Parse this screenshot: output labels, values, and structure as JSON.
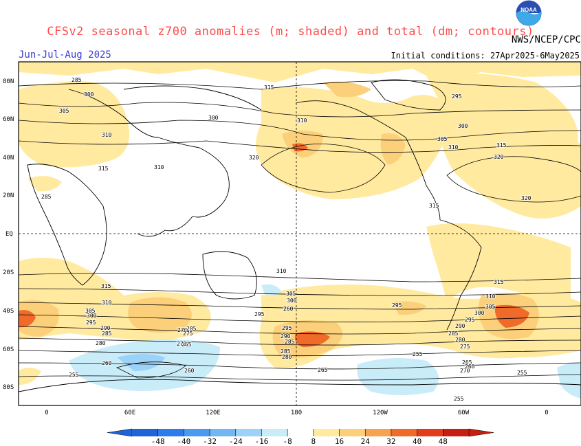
{
  "header": {
    "title": "CFSv2 seasonal z700 anomalies (m; shaded) and total (dm; contours)",
    "period": "Jun-Jul-Aug 2025",
    "initial_conditions": "Initial conditions: 27Apr2025-6May2025",
    "agency": "NWS/NCEP/CPC",
    "logo_text": "NOAA"
  },
  "map": {
    "lat_labels": [
      "80N",
      "60N",
      "40N",
      "20N",
      "EQ",
      "20S",
      "40S",
      "60S",
      "80S"
    ],
    "lon_labels": [
      "0",
      "60E",
      "120E",
      "180",
      "120W",
      "60W",
      "0"
    ],
    "contour_labels": [
      "285",
      "300",
      "305",
      "310",
      "315",
      "310",
      "320",
      "300",
      "315",
      "310",
      "285",
      "300",
      "305",
      "310",
      "315",
      "320",
      "320",
      "295",
      "315",
      "310",
      "315",
      "310",
      "305",
      "300",
      "295",
      "290",
      "285",
      "280",
      "270",
      "265",
      "260",
      "255",
      "260",
      "285",
      "275",
      "270",
      "260",
      "305",
      "300",
      "295",
      "290",
      "285",
      "280",
      "265",
      "255",
      "270",
      "280",
      "275",
      "265",
      "260",
      "255",
      "315",
      "310",
      "305",
      "300",
      "295",
      "290",
      "285",
      "295",
      "295",
      "255",
      "285"
    ]
  },
  "colorbar": {
    "labels": [
      "-48",
      "-40",
      "-32",
      "-24",
      "-16",
      "-8",
      "8",
      "16",
      "24",
      "32",
      "40",
      "48"
    ],
    "colors": [
      "#1e64d8",
      "#2c7cec",
      "#4b9af0",
      "#72b6f4",
      "#9cd2f7",
      "#c9ecf9",
      "#ffffff",
      "#ffeaa0",
      "#fcd07a",
      "#f8a24e",
      "#f06a2a",
      "#e23d1a",
      "#c81e12"
    ]
  }
}
